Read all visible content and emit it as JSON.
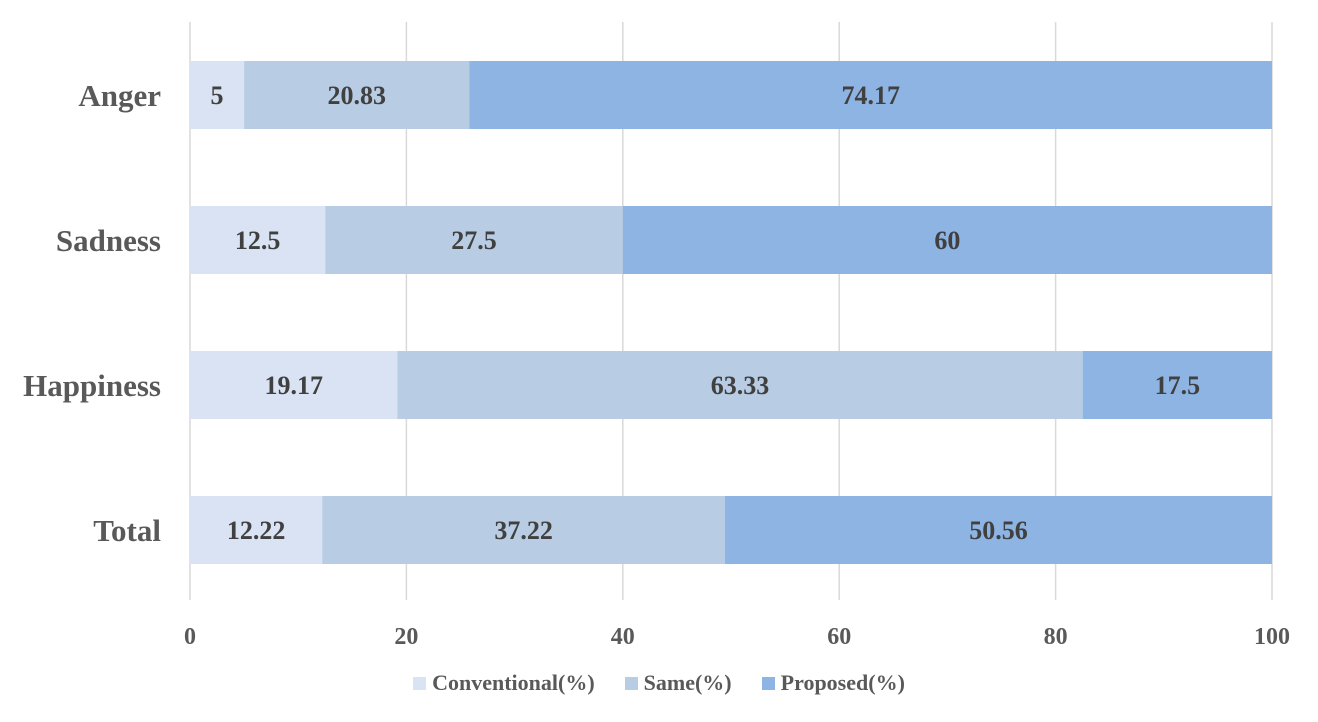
{
  "chart_data": {
    "type": "bar",
    "orientation": "horizontal",
    "stacked": true,
    "title": "",
    "xlabel": "",
    "ylabel": "",
    "categories": [
      "Anger",
      "Sadness",
      "Happiness",
      "Total"
    ],
    "series": [
      {
        "name": "Conventional(%)",
        "values": [
          5,
          12.5,
          19.17,
          12.22
        ],
        "color": "#dae3f3"
      },
      {
        "name": "Same(%)",
        "values": [
          20.83,
          27.5,
          63.33,
          37.22
        ],
        "color": "#b8cce4"
      },
      {
        "name": "Proposed(%)",
        "values": [
          74.17,
          60,
          17.5,
          50.56
        ],
        "color": "#8eb4e3"
      }
    ],
    "xlim": [
      0,
      100
    ],
    "xticks": [
      "0",
      "20",
      "40",
      "60",
      "80",
      "100"
    ],
    "grid": "vertical",
    "legend_position": "bottom",
    "data_labels": true
  }
}
